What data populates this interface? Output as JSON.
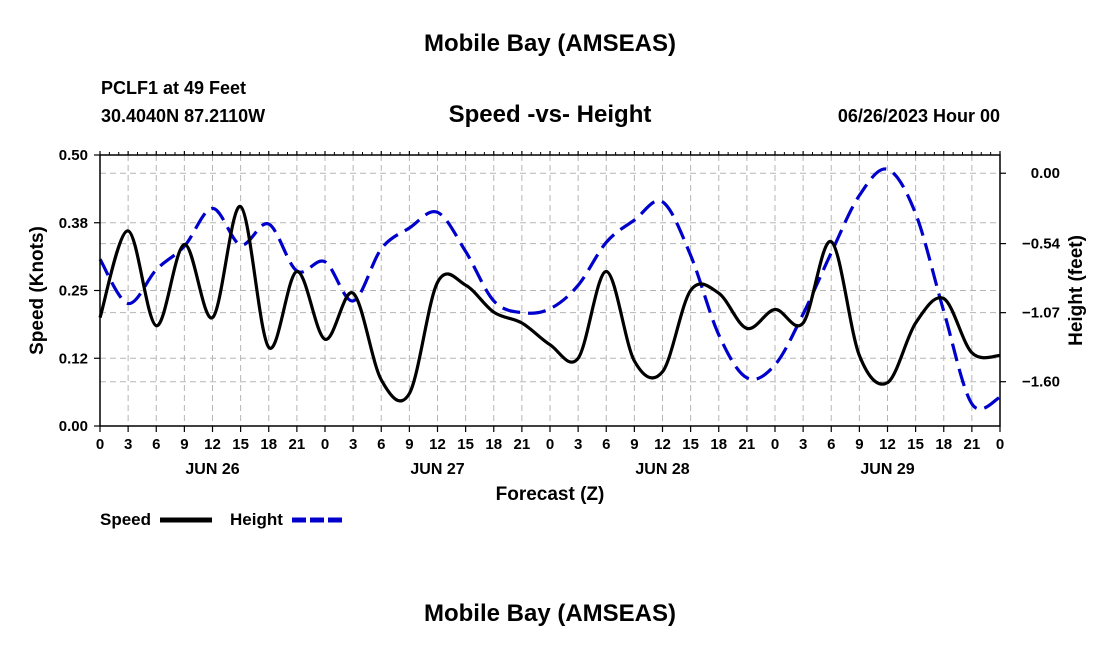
{
  "header": {
    "title": "Mobile Bay (AMSEAS)",
    "station_line": "PCLF1 at 49 Feet",
    "coords_line": "30.4040N  87.2110W",
    "chart_title": "Speed -vs- Height",
    "date_line": "06/26/2023 Hour 00"
  },
  "footer": {
    "title": "Mobile Bay (AMSEAS)"
  },
  "chart_data": {
    "type": "line",
    "title": "Speed -vs- Height",
    "xlabel": "Forecast (Z)",
    "ylabel": "Speed (Knots)",
    "y2label": "Height (feet)",
    "xlim": [
      0,
      96
    ],
    "ylim": [
      0,
      0.5
    ],
    "y2lim": [
      -1.94,
      0.14
    ],
    "x_ticks": [
      0,
      3,
      6,
      9,
      12,
      15,
      18,
      21,
      24,
      27,
      30,
      33,
      36,
      39,
      42,
      45,
      48,
      51,
      54,
      57,
      60,
      63,
      66,
      69,
      72,
      75,
      78,
      81,
      84,
      87,
      90,
      93,
      96
    ],
    "x_tick_labels": [
      "0",
      "3",
      "6",
      "9",
      "12",
      "15",
      "18",
      "21",
      "0",
      "3",
      "6",
      "9",
      "12",
      "15",
      "18",
      "21",
      "0",
      "3",
      "6",
      "9",
      "12",
      "15",
      "18",
      "21",
      "0",
      "3",
      "6",
      "9",
      "12",
      "15",
      "18",
      "21",
      "0"
    ],
    "day_labels": [
      {
        "x": 12,
        "label": "JUN 26"
      },
      {
        "x": 36,
        "label": "JUN 27"
      },
      {
        "x": 60,
        "label": "JUN 28"
      },
      {
        "x": 84,
        "label": "JUN 29"
      }
    ],
    "y_ticks": [
      0,
      0.125,
      0.25,
      0.375,
      0.5
    ],
    "y_tick_labels": [
      "0.00",
      "0.12",
      "0.25",
      "0.38",
      "0.50"
    ],
    "y2_ticks": [
      0.0,
      -0.54,
      -1.07,
      -1.6
    ],
    "y2_tick_labels": [
      "0.00",
      "−0.54",
      "−1.07",
      "−1.60"
    ],
    "grid": true,
    "legend_position": "bottom-left",
    "series": [
      {
        "name": "Speed",
        "axis": "left",
        "color": "#000000",
        "dash": "solid",
        "x": [
          0,
          3,
          6,
          9,
          12,
          15,
          18,
          21,
          24,
          27,
          30,
          33,
          36,
          39,
          42,
          45,
          48,
          51,
          54,
          57,
          60,
          63,
          66,
          69,
          72,
          75,
          78,
          81,
          84,
          87,
          90,
          93,
          96
        ],
        "values": [
          0.2,
          0.36,
          0.185,
          0.335,
          0.2,
          0.405,
          0.145,
          0.285,
          0.16,
          0.245,
          0.085,
          0.06,
          0.265,
          0.26,
          0.21,
          0.19,
          0.15,
          0.125,
          0.285,
          0.12,
          0.1,
          0.25,
          0.245,
          0.18,
          0.215,
          0.19,
          0.34,
          0.13,
          0.08,
          0.19,
          0.235,
          0.135,
          0.13
        ]
      },
      {
        "name": "Height",
        "axis": "right",
        "color": "#0000cc",
        "dash": "dashed",
        "x": [
          0,
          3,
          6,
          9,
          12,
          15,
          18,
          21,
          24,
          27,
          30,
          33,
          36,
          39,
          42,
          45,
          48,
          51,
          54,
          57,
          60,
          63,
          66,
          69,
          72,
          75,
          78,
          81,
          84,
          87,
          90,
          93,
          96
        ],
        "values": [
          -0.66,
          -1.0,
          -0.74,
          -0.56,
          -0.27,
          -0.55,
          -0.39,
          -0.75,
          -0.68,
          -0.98,
          -0.58,
          -0.42,
          -0.3,
          -0.6,
          -0.98,
          -1.07,
          -1.04,
          -0.86,
          -0.53,
          -0.36,
          -0.22,
          -0.63,
          -1.24,
          -1.57,
          -1.47,
          -1.08,
          -0.61,
          -0.17,
          0.03,
          -0.31,
          -1.06,
          -1.77,
          -1.72
        ]
      }
    ],
    "legend": [
      {
        "label": "Speed",
        "color": "#000000",
        "dash": "solid"
      },
      {
        "label": "Height",
        "color": "#0000cc",
        "dash": "dashed"
      }
    ]
  }
}
